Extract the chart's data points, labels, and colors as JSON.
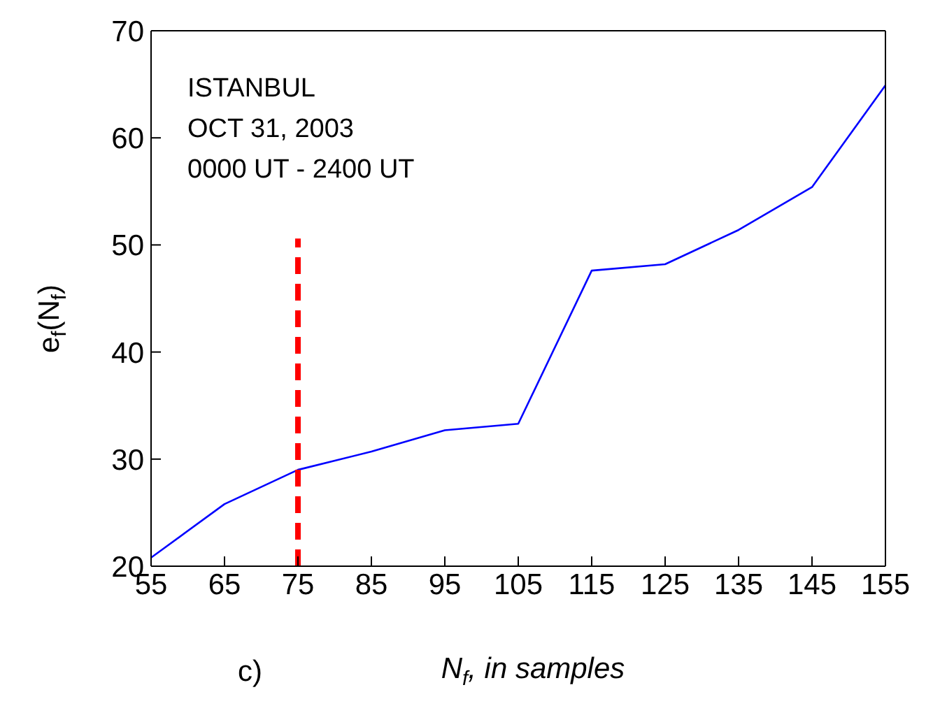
{
  "chart_data": {
    "type": "line",
    "xlabel": "N$_{f}$,  in samples",
    "ylabel": "e$_{f}$(N$_{f}$)",
    "annotations": [
      "ISTANBUL",
      "OCT 31, 2003",
      "0000 UT - 2400 UT",
      "c)"
    ],
    "x": [
      55,
      65,
      75,
      85,
      95,
      105,
      115,
      125,
      135,
      145,
      155
    ],
    "series": [
      {
        "color": "#0000ff",
        "values": [
          20.8,
          25.8,
          29.0,
          30.7,
          32.7,
          33.3,
          47.6,
          48.2,
          51.4,
          55.4,
          64.9
        ],
        "line_style": "solid"
      },
      {
        "type": "line",
        "x": [
          75,
          75
        ],
        "color": "#ff0000",
        "values": [
          20,
          50.6
        ],
        "line_style": "dashed"
      }
    ],
    "xlim": [
      55,
      155
    ],
    "xticks": [
      55,
      65,
      75,
      85,
      95,
      105,
      115,
      125,
      135,
      145,
      155
    ],
    "ylim": [
      20,
      70
    ],
    "yticks": [
      20,
      30,
      40,
      50,
      60,
      70
    ],
    "marker": "none"
  }
}
